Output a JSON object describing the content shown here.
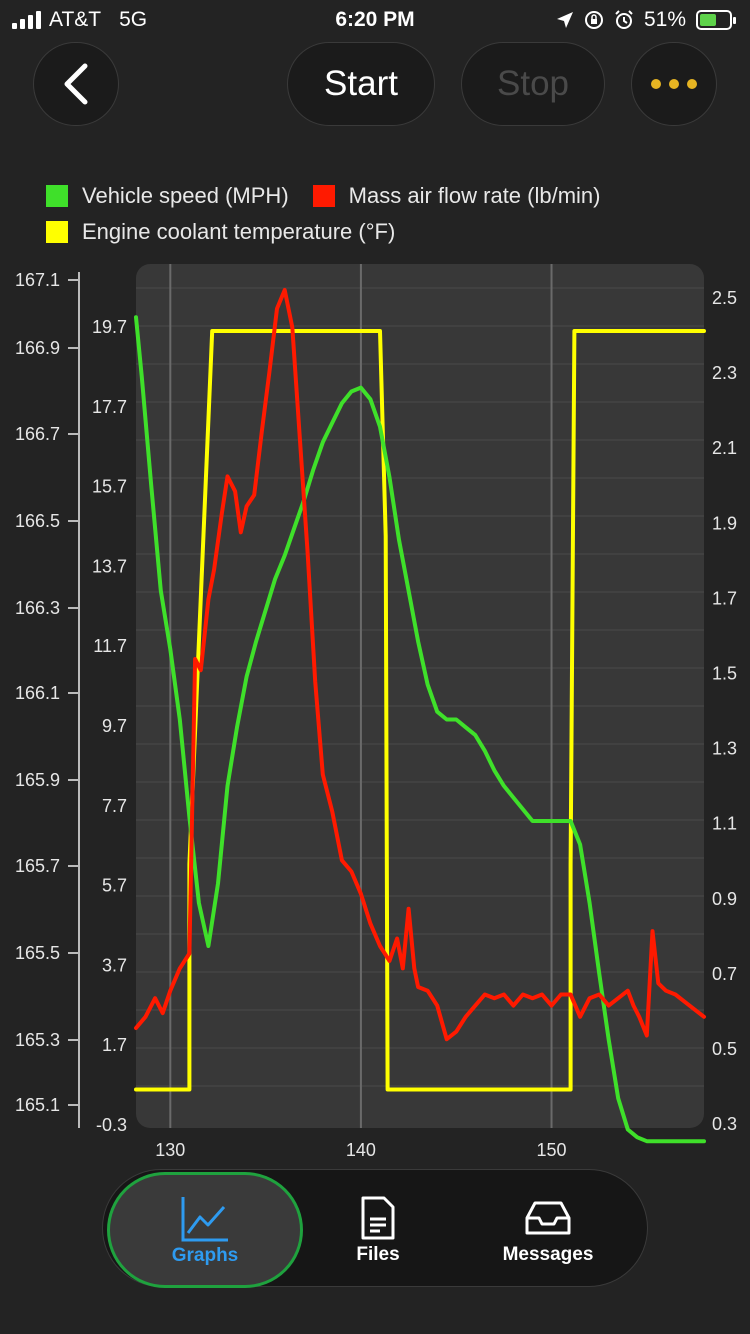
{
  "status": {
    "carrier": "AT&T",
    "network": "5G",
    "time": "6:20 PM",
    "battery": "51%"
  },
  "toolbar": {
    "back_icon": "chevron-left-icon",
    "start_label": "Start",
    "stop_label": "Stop",
    "more_icon": "ellipsis-icon",
    "more_color": "#e6b422"
  },
  "legend": [
    {
      "label": "Vehicle speed (MPH)",
      "color": "#3fe02a"
    },
    {
      "label": "Mass air flow rate (lb/min)",
      "color": "#ff1a00"
    },
    {
      "label": "Engine coolant temperature (°F)",
      "color": "#ffff00"
    }
  ],
  "chart_data": {
    "type": "line",
    "grid": true,
    "x_range": [
      128.2,
      158
    ],
    "x_ticks": [
      "130",
      "140",
      "150"
    ],
    "y_left_temp_ticks": [
      "167.1",
      "166.9",
      "166.7",
      "166.5",
      "166.3",
      "166.1",
      "165.9",
      "165.7",
      "165.5",
      "165.3",
      "165.1"
    ],
    "y_left_temp_range": [
      165.1,
      167.1
    ],
    "y_speed_ticks": [
      "19.7",
      "17.7",
      "15.7",
      "13.7",
      "11.7",
      "9.7",
      "7.7",
      "5.7",
      "3.7",
      "1.7",
      "-0.3"
    ],
    "y_speed_range": [
      -0.3,
      20.7
    ],
    "y_right_ticks": [
      "2.5",
      "2.3",
      "2.1",
      "1.9",
      "1.7",
      "1.5",
      "1.3",
      "1.1",
      "0.9",
      "0.7",
      "0.5",
      "0.3"
    ],
    "y_right_range": [
      0.3,
      2.5
    ],
    "series": [
      {
        "name": "Engine coolant temperature (°F)",
        "axis": "temp",
        "color": "#ffff00",
        "x": [
          128.2,
          131.0,
          131.0,
          132.2,
          141.0,
          141.3,
          141.4,
          151.0,
          151.0,
          151.2,
          158.0
        ],
        "y": [
          165.15,
          165.15,
          165.7,
          167.0,
          167.0,
          166.5,
          165.15,
          165.15,
          165.7,
          167.0,
          167.0
        ]
      },
      {
        "name": "Vehicle speed (MPH)",
        "axis": "speed",
        "color": "#3fe02a",
        "x": [
          128.2,
          128.5,
          129.0,
          129.5,
          130.0,
          130.5,
          131.0,
          131.5,
          132.0,
          132.5,
          133.0,
          133.5,
          134.0,
          134.5,
          135.0,
          135.5,
          136.0,
          136.5,
          137.0,
          137.5,
          138.0,
          138.5,
          139.0,
          139.5,
          140.0,
          140.5,
          141.0,
          141.5,
          142.0,
          142.5,
          143.0,
          143.5,
          144.0,
          144.5,
          145.0,
          145.5,
          146.0,
          146.5,
          147.0,
          147.5,
          148.0,
          148.5,
          149.0,
          149.5,
          150.0,
          150.5,
          151.0,
          151.5,
          152.0,
          152.5,
          153.0,
          153.5,
          154.0,
          154.5,
          155.0,
          156.0,
          157.0,
          158.0
        ],
        "y": [
          20.0,
          18.5,
          15.7,
          13.0,
          11.5,
          9.7,
          7.2,
          5.0,
          3.9,
          5.5,
          8.0,
          9.5,
          10.8,
          11.7,
          12.5,
          13.3,
          13.9,
          14.6,
          15.3,
          16.1,
          16.8,
          17.3,
          17.8,
          18.1,
          18.2,
          17.9,
          17.2,
          15.9,
          14.3,
          13.0,
          11.7,
          10.6,
          9.9,
          9.7,
          9.7,
          9.5,
          9.3,
          8.9,
          8.4,
          8.0,
          7.7,
          7.4,
          7.1,
          7.1,
          7.1,
          7.1,
          7.1,
          6.5,
          5.0,
          3.2,
          1.5,
          0.0,
          -0.8,
          -1.0,
          -1.1,
          -1.1,
          -1.1,
          -1.1
        ]
      },
      {
        "name": "Mass air flow rate (lb/min)",
        "axis": "maf",
        "color": "#ff1a00",
        "x": [
          128.2,
          128.7,
          129.2,
          129.6,
          130.0,
          130.5,
          131.0,
          131.3,
          131.6,
          132.0,
          132.3,
          132.7,
          133.0,
          133.4,
          133.7,
          134.0,
          134.4,
          134.8,
          135.2,
          135.6,
          136.0,
          136.4,
          136.8,
          137.2,
          137.6,
          138.0,
          138.5,
          139.0,
          139.5,
          140.0,
          140.5,
          141.0,
          141.5,
          141.9,
          142.2,
          142.5,
          142.8,
          143.0,
          143.5,
          144.0,
          144.5,
          145.0,
          145.5,
          146.0,
          146.5,
          147.0,
          147.5,
          148.0,
          148.5,
          149.0,
          149.5,
          150.0,
          150.5,
          151.0,
          151.5,
          152.0,
          152.5,
          153.0,
          153.5,
          154.0,
          154.3,
          154.6,
          155.0,
          155.3,
          155.6,
          156.0,
          156.5,
          157.0,
          157.5,
          158.0
        ],
        "y": [
          0.52,
          0.55,
          0.6,
          0.56,
          0.62,
          0.68,
          0.72,
          1.51,
          1.48,
          1.67,
          1.75,
          1.9,
          2.0,
          1.96,
          1.85,
          1.92,
          1.95,
          2.12,
          2.28,
          2.45,
          2.5,
          2.4,
          2.1,
          1.8,
          1.45,
          1.2,
          1.1,
          0.97,
          0.94,
          0.88,
          0.8,
          0.74,
          0.7,
          0.76,
          0.68,
          0.84,
          0.68,
          0.63,
          0.62,
          0.58,
          0.49,
          0.51,
          0.55,
          0.58,
          0.61,
          0.6,
          0.61,
          0.58,
          0.61,
          0.6,
          0.61,
          0.58,
          0.61,
          0.61,
          0.55,
          0.6,
          0.61,
          0.58,
          0.6,
          0.62,
          0.58,
          0.55,
          0.5,
          0.78,
          0.64,
          0.62,
          0.61,
          0.59,
          0.57,
          0.55
        ]
      }
    ]
  },
  "tabs": [
    {
      "label": "Graphs",
      "icon": "line-chart-icon",
      "active": true
    },
    {
      "label": "Files",
      "icon": "document-icon",
      "active": false
    },
    {
      "label": "Messages",
      "icon": "inbox-tray-icon",
      "active": false
    }
  ]
}
